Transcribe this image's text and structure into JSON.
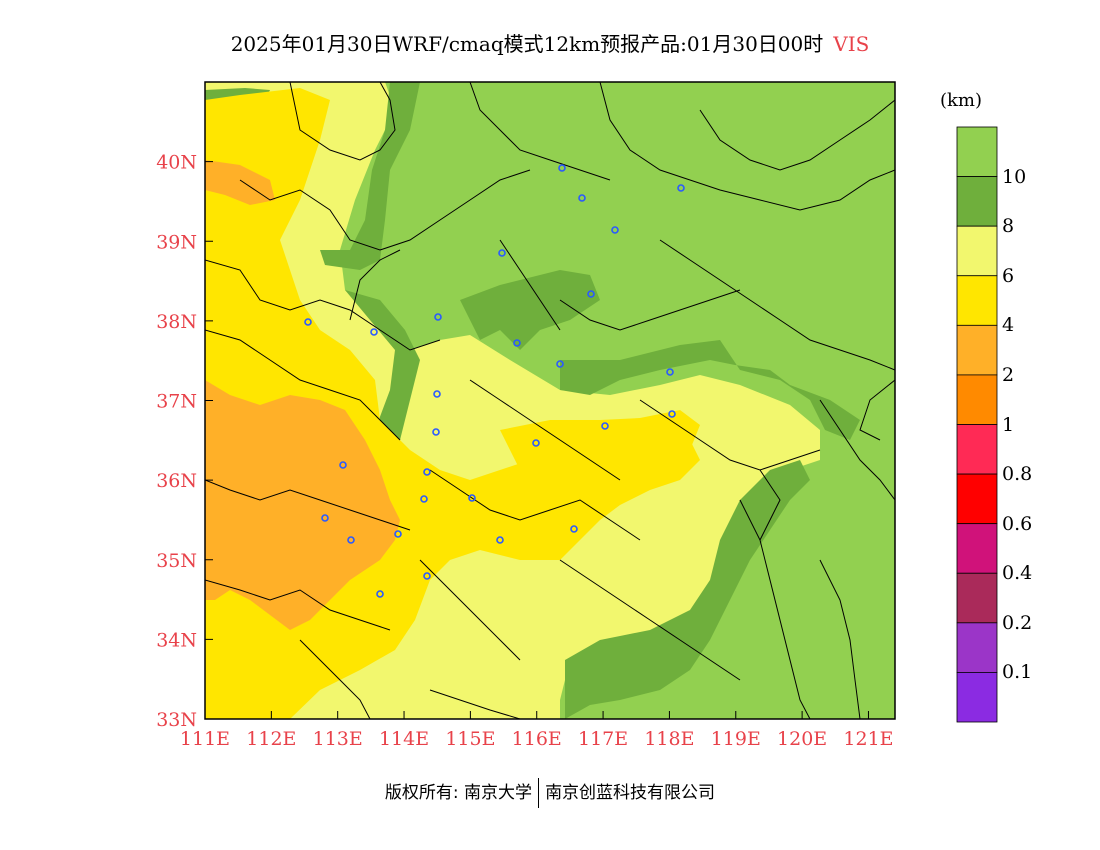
{
  "title": {
    "main": "2025年01月30日WRF/cmaq模式12km预报产品:01月30日00时",
    "variable": "VIS"
  },
  "map": {
    "lat_labels": [
      "40N",
      "39N",
      "38N",
      "37N",
      "36N",
      "35N",
      "34N",
      "33N"
    ],
    "lon_labels": [
      "111E",
      "112E",
      "113E",
      "114E",
      "115E",
      "116E",
      "117E",
      "118E",
      "119E",
      "120E",
      "121E"
    ],
    "lat_values": [
      40,
      39,
      38,
      37,
      36,
      35,
      34,
      33
    ],
    "lon_values": [
      111,
      112,
      113,
      114,
      115,
      116,
      117,
      118,
      119,
      120,
      121
    ],
    "lat_range": [
      33,
      41
    ],
    "lon_range": [
      111,
      121.4
    ]
  },
  "colorbar": {
    "unit": "(km)",
    "labels": [
      "10",
      "8",
      "6",
      "4",
      "2",
      "1",
      "0.8",
      "0.6",
      "0.4",
      "0.2",
      "0.1"
    ],
    "colors": [
      "#92d050",
      "#6faf3c",
      "#f2f76e",
      "#ffe600",
      "#ffb028",
      "#ff8a00",
      "#ff2a55",
      "#ff0000",
      "#d0127a",
      "#aa2a5a",
      "#9b35c8",
      "#8b2be2"
    ]
  },
  "footer": {
    "left": "版权所有: 南京大学",
    "right": "南京创蓝科技有限公司"
  }
}
